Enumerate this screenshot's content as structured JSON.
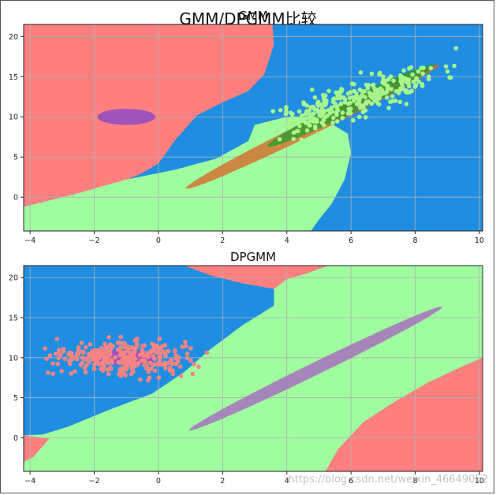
{
  "figure": {
    "suptitle": "GMM/DPGMM比较",
    "watermark": "https://blog.csdn.net/weixin_46649052"
  },
  "colors": {
    "red_region": "#fd7f7f",
    "blue_region": "#1f8ee2",
    "green_region": "#9ffd9f",
    "grid": "#b0b0b0",
    "ellipse_purple": "#8a49c8",
    "ellipse_orange": "#d66a2a",
    "ellipse_green": "#2e9e2e",
    "ellipse_magenta": "#c43fb0",
    "ellipse_violet": "#a868c0",
    "points_green": "#a8f58c",
    "points_salmon": "#f48484"
  },
  "chart_data": [
    {
      "type": "scatter",
      "title": "GMM",
      "xlim": [
        -4.2,
        10.1
      ],
      "ylim": [
        -4.2,
        21.5
      ],
      "xticks": [
        -4,
        -2,
        0,
        2,
        4,
        6,
        8,
        10
      ],
      "yticks": [
        0,
        5,
        10,
        15,
        20
      ],
      "grid": true,
      "ellipses": [
        {
          "cx": -1.0,
          "cy": 10.0,
          "rx": 0.9,
          "ry": 1.0,
          "angle": 0,
          "color": "ellipse_purple"
        },
        {
          "cx": 4.8,
          "cy": 8.8,
          "rx": 5.3,
          "ry": 0.35,
          "angle": 42,
          "color": "ellipse_orange"
        },
        {
          "cx": 6.0,
          "cy": 11.4,
          "rx": 3.5,
          "ry": 0.35,
          "angle": 42,
          "color": "ellipse_green"
        }
      ],
      "scatter_series": {
        "name": "points",
        "color": "points_green",
        "center": [
          6.0,
          12.0
        ],
        "cov": [
          [
            2.0,
            2.6
          ],
          [
            2.6,
            4.7
          ]
        ],
        "n": 300,
        "seed": 11,
        "x_range": [
          3.5,
          9.3
        ],
        "y_range": [
          5.0,
          20.0
        ]
      }
    },
    {
      "type": "scatter",
      "title": "DPGMM",
      "xlim": [
        -4.2,
        10.1
      ],
      "ylim": [
        -4.2,
        21.5
      ],
      "xticks": [
        -4,
        -2,
        0,
        2,
        4,
        6,
        8,
        10
      ],
      "yticks": [
        0,
        5,
        10,
        15,
        20
      ],
      "grid": true,
      "ellipses": [
        {
          "cx": -1.0,
          "cy": 10.0,
          "rx": 0.95,
          "ry": 0.95,
          "angle": 0,
          "color": "ellipse_magenta"
        },
        {
          "cx": 4.9,
          "cy": 8.65,
          "rx": 5.3,
          "ry": 0.3,
          "angle": 42,
          "color": "ellipse_violet"
        }
      ],
      "scatter_series": {
        "name": "points",
        "color": "points_salmon",
        "center": [
          -1.0,
          10.0
        ],
        "cov": [
          [
            1.1,
            0.0
          ],
          [
            0.0,
            1.2
          ]
        ],
        "n": 300,
        "seed": 5,
        "x_range": [
          -3.6,
          1.6
        ],
        "y_range": [
          6.5,
          14.0
        ]
      }
    }
  ]
}
